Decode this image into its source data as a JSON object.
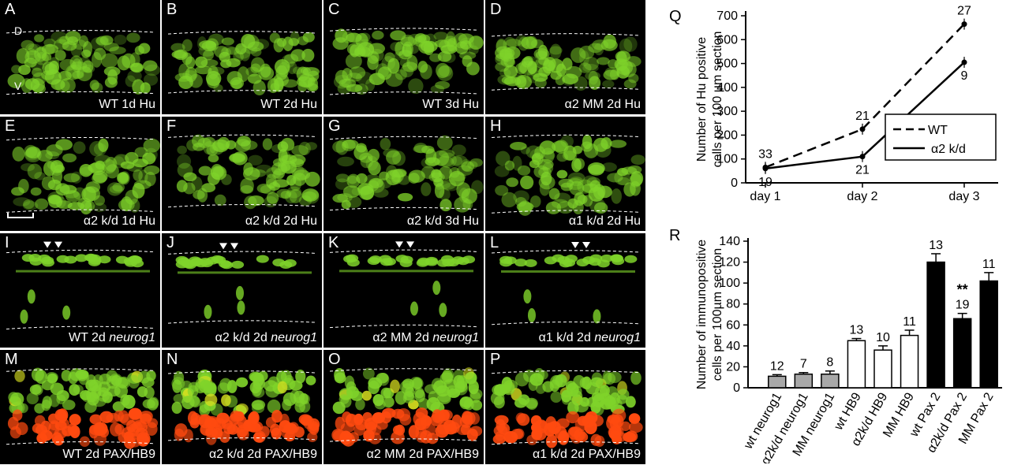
{
  "panels": [
    {
      "letter": "A",
      "caption": "WT 1d Hu",
      "italic": "",
      "color": "green",
      "extra_d": "D",
      "extra_v": "V"
    },
    {
      "letter": "B",
      "caption": "WT 2d Hu",
      "italic": "",
      "color": "green"
    },
    {
      "letter": "C",
      "caption": "WT 3d Hu",
      "italic": "",
      "color": "green"
    },
    {
      "letter": "D",
      "caption": "α2 MM 2d Hu",
      "italic": "",
      "color": "green"
    },
    {
      "letter": "E",
      "caption": "α2 k/d 1d Hu",
      "italic": "",
      "color": "green"
    },
    {
      "letter": "F",
      "caption": "α2 k/d 2d Hu",
      "italic": "",
      "color": "green"
    },
    {
      "letter": "G",
      "caption": "α2 k/d 3d Hu",
      "italic": "",
      "color": "green"
    },
    {
      "letter": "H",
      "caption": "α1 k/d 2d Hu",
      "italic": "",
      "color": "green"
    },
    {
      "letter": "I",
      "caption": "WT 2d ",
      "italic": "neurog1",
      "color": "sparse"
    },
    {
      "letter": "J",
      "caption": "α2 k/d 2d ",
      "italic": "neurog1",
      "color": "sparse"
    },
    {
      "letter": "K",
      "caption": "α2 MM 2d ",
      "italic": "neurog1",
      "color": "sparse"
    },
    {
      "letter": "L",
      "caption": "α1 k/d 2d ",
      "italic": "neurog1",
      "color": "sparse"
    },
    {
      "letter": "M",
      "caption": "WT 2d PAX/HB9",
      "italic": "",
      "color": "dual"
    },
    {
      "letter": "N",
      "caption": "α2 k/d 2d PAX/HB9",
      "italic": "",
      "color": "dual"
    },
    {
      "letter": "O",
      "caption": "α2 MM 2d PAX/HB9",
      "italic": "",
      "color": "dual"
    },
    {
      "letter": "P",
      "caption": "α1 k/d 2d PAX/HB9",
      "italic": "",
      "color": "dual"
    }
  ],
  "chart_data": [
    {
      "label": "Q",
      "type": "line",
      "ylabel_line1": "Number of Hu positive",
      "ylabel_line2": "cells per 100 µm section",
      "categories": [
        "day 1",
        "day 2",
        "day 3"
      ],
      "ylim": [
        0,
        700
      ],
      "yticks": [
        "0",
        "100",
        "200",
        "300",
        "400",
        "500",
        "600",
        "700"
      ],
      "series": [
        {
          "name": "WT",
          "style": "dashed",
          "values": [
            65,
            225,
            665
          ],
          "n": [
            "33",
            "21",
            "27"
          ]
        },
        {
          "name": "α2 k/d",
          "style": "solid",
          "values": [
            60,
            110,
            505
          ],
          "n": [
            "19",
            "21",
            "9"
          ]
        }
      ]
    },
    {
      "label": "R",
      "type": "bar",
      "ylabel_line1": "Number of immunopositive",
      "ylabel_line2": "cells per 100µm section",
      "ylim": [
        0,
        140
      ],
      "yticks": [
        "0",
        "20",
        "40",
        "60",
        "80",
        "100",
        "120",
        "140"
      ],
      "categories": [
        "wt neurog1",
        "α2k/d neurog1",
        "MM neurog1",
        "wt HB9",
        "α2k/d HB9",
        "MM HB9",
        "wt Pax 2",
        "α2k/d Pax 2",
        "MM Pax 2"
      ],
      "values": [
        11,
        13,
        13,
        45,
        36,
        50,
        120,
        66,
        102
      ],
      "errors": [
        1.5,
        1.5,
        3,
        2,
        4,
        5,
        8,
        5,
        8
      ],
      "n": [
        "12",
        "7",
        "8",
        "13",
        "10",
        "11",
        "13",
        "19",
        "11"
      ],
      "fills": [
        "gray",
        "gray",
        "gray",
        "white",
        "white",
        "white",
        "black",
        "black",
        "black"
      ],
      "significance": "**"
    }
  ],
  "colors": {
    "green": "#7fd32a",
    "red": "#ff4a10",
    "gray": "#a8a8a8",
    "white": "#ffffff",
    "black": "#000000"
  }
}
